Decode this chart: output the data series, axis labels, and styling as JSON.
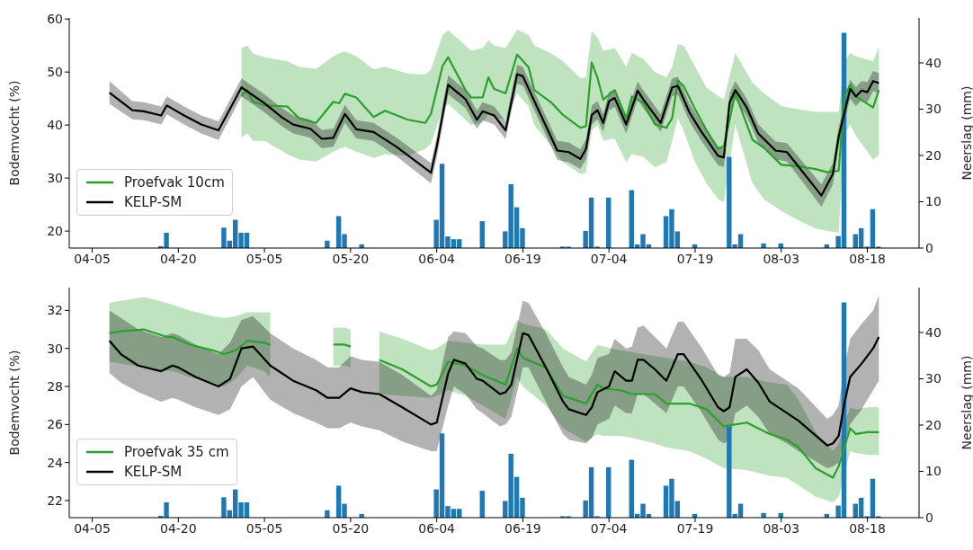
{
  "chart_data": [
    {
      "type": "line",
      "ylabel": "Bodemvocht (%)",
      "y2label": "Neerslag (mm)",
      "legend": "bottom left",
      "xlim": [
        "--04-01",
        "--08-27"
      ],
      "xticks": [
        {
          "value": "--04-05",
          "label": "04-05"
        },
        {
          "value": "--04-20",
          "label": "04-20"
        },
        {
          "value": "--05-05",
          "label": "05-05"
        },
        {
          "value": "--05-20",
          "label": "05-20"
        },
        {
          "value": "--06-04",
          "label": "06-04"
        },
        {
          "value": "--06-19",
          "label": "06-19"
        },
        {
          "value": "--07-04",
          "label": "07-04"
        },
        {
          "value": "--07-19",
          "label": "07-19"
        },
        {
          "value": "--08-03",
          "label": "08-03"
        },
        {
          "value": "--08-18",
          "label": "08-18"
        }
      ],
      "ylim": [
        16.8,
        60.2
      ],
      "yticks": [
        20,
        30,
        40,
        50,
        60
      ],
      "y2lim": [
        0,
        49.7
      ],
      "y2ticks": [
        0,
        10,
        20,
        30,
        40
      ],
      "series": [
        {
          "name": "Proefvak 10cm",
          "color": "#2ca02c",
          "x": [
            "--05-01",
            "--05-02",
            "--05-03",
            "--05-05",
            "--05-09",
            "--05-11",
            "--05-14",
            "--05-17",
            "--05-18",
            "--05-19",
            "--05-21",
            "--05-24",
            "--05-26",
            "--05-30",
            "--06-02",
            "--06-03",
            "--06-05",
            "--06-06",
            "--06-09",
            "--06-10",
            "--06-12",
            "--06-13",
            "--06-14",
            "--06-16",
            "--06-18",
            "--06-20",
            "--06-21",
            "--06-24",
            "--06-26",
            "--06-29",
            "--06-30",
            "--07-01",
            "--07-02",
            "--07-03",
            "--07-05",
            "--07-07",
            "--07-08",
            "--07-10",
            "--07-12",
            "--07-14",
            "--07-15",
            "--07-16",
            "--07-17",
            "--07-19",
            "--07-21",
            "--07-23",
            "--07-24",
            "--07-26",
            "--07-29",
            "--07-31",
            "--08-03",
            "--08-06",
            "--08-09",
            "--08-11",
            "--08-13",
            "--08-14",
            "--08-15",
            "--08-16",
            "--08-19",
            "--08-20"
          ],
          "values": [
            45.5,
            46.6,
            44.4,
            43.7,
            43.5,
            41.3,
            40.4,
            44.4,
            44.1,
            45.9,
            45.2,
            41.5,
            42.7,
            41.0,
            40.4,
            42.1,
            51.1,
            52.8,
            46.6,
            45.2,
            45.2,
            49.0,
            46.8,
            46.0,
            53.3,
            50.9,
            46.6,
            44.2,
            41.9,
            39.5,
            39.8,
            51.8,
            48.9,
            44.8,
            46.6,
            41.3,
            45.4,
            44.2,
            40.1,
            39.5,
            41.3,
            48.4,
            47.4,
            43.0,
            39.0,
            35.5,
            36.0,
            46.0,
            37.2,
            35.7,
            32.5,
            32.2,
            31.7,
            31.1,
            31.4,
            45.4,
            47.6,
            45.4,
            43.3,
            46.6
          ],
          "lower": [
            37.6,
            38.5,
            37.0,
            37.0,
            34.5,
            33.5,
            33.1,
            35.0,
            35.5,
            35.9,
            35.0,
            33.8,
            34.5,
            34.2,
            35.5,
            36.5,
            43.0,
            44.0,
            41.0,
            40.0,
            40.5,
            42.0,
            41.5,
            41.0,
            46.0,
            43.5,
            40.0,
            36.0,
            33.0,
            30.8,
            31.0,
            39.0,
            40.0,
            37.0,
            37.5,
            33.0,
            34.5,
            34.0,
            32.0,
            33.0,
            37.0,
            41.3,
            39.0,
            33.0,
            29.0,
            26.0,
            25.5,
            40.1,
            29.0,
            26.0,
            23.8,
            22.0,
            20.5,
            20.0,
            19.7,
            38.0,
            40.1,
            38.0,
            33.5,
            34.3
          ],
          "upper": [
            54.5,
            55.0,
            53.5,
            52.8,
            52.0,
            51.0,
            50.6,
            53.0,
            53.5,
            53.9,
            53.0,
            50.5,
            51.0,
            49.7,
            49.5,
            50.5,
            57.0,
            57.9,
            55.0,
            54.0,
            54.5,
            56.0,
            55.0,
            54.5,
            58.0,
            57.0,
            55.0,
            53.5,
            52.0,
            48.9,
            49.0,
            57.7,
            56.5,
            54.0,
            54.5,
            51.0,
            53.6,
            52.5,
            50.0,
            49.0,
            51.0,
            55.3,
            55.0,
            51.0,
            47.0,
            45.5,
            44.8,
            53.6,
            48.0,
            46.0,
            43.6,
            43.0,
            42.5,
            42.5,
            42.5,
            52.0,
            53.6,
            53.0,
            52.0,
            54.7
          ]
        },
        {
          "name": "KELP-SM",
          "color": "#000000",
          "x": [
            "--04-08",
            "--04-12",
            "--04-14",
            "--04-17",
            "--04-18",
            "--04-21",
            "--04-24",
            "--04-27",
            "--05-01",
            "--05-05",
            "--05-08",
            "--05-10",
            "--05-13",
            "--05-15",
            "--05-17",
            "--05-19",
            "--05-21",
            "--05-24",
            "--05-28",
            "--06-03",
            "--06-04",
            "--06-06",
            "--06-09",
            "--06-11",
            "--06-12",
            "--06-14",
            "--06-16",
            "--06-18",
            "--06-19",
            "--06-25",
            "--06-27",
            "--06-29",
            "--06-30",
            "--07-01",
            "--07-02",
            "--07-03",
            "--07-04",
            "--07-05",
            "--07-07",
            "--07-09",
            "--07-10",
            "--07-13",
            "--07-15",
            "--07-16",
            "--07-18",
            "--07-20",
            "--07-23",
            "--07-24",
            "--07-25",
            "--07-26",
            "--07-28",
            "--07-30",
            "--08-02",
            "--08-04",
            "--08-10",
            "--08-12",
            "--08-13",
            "--08-15",
            "--08-16",
            "--08-17",
            "--08-18",
            "--08-19",
            "--08-20"
          ],
          "values": [
            46.1,
            42.8,
            42.6,
            41.8,
            43.7,
            41.8,
            40.1,
            39.0,
            47.1,
            44.1,
            41.5,
            40.1,
            39.3,
            37.4,
            37.6,
            42.1,
            39.2,
            38.7,
            35.9,
            31.0,
            35.9,
            47.6,
            44.9,
            41.0,
            42.6,
            41.8,
            39.0,
            49.6,
            49.2,
            35.2,
            34.9,
            33.6,
            35.5,
            41.9,
            42.8,
            40.4,
            44.5,
            45.1,
            40.1,
            46.5,
            44.8,
            40.4,
            47.1,
            47.4,
            42.4,
            38.9,
            34.2,
            33.9,
            44.2,
            46.6,
            43.3,
            38.4,
            35.2,
            34.9,
            26.7,
            30.8,
            37.8,
            46.8,
            45.4,
            46.5,
            46.2,
            48.3,
            47.9
          ],
          "lower": [
            44.0,
            41.1,
            40.9,
            40.1,
            42.0,
            40.1,
            38.4,
            37.2,
            45.4,
            42.4,
            39.8,
            38.4,
            37.6,
            35.6,
            35.9,
            40.4,
            37.5,
            37.0,
            34.1,
            29.0,
            33.8,
            45.8,
            43.2,
            39.3,
            40.9,
            40.1,
            37.3,
            47.8,
            47.5,
            33.4,
            33.0,
            31.7,
            33.6,
            40.1,
            41.1,
            38.7,
            42.8,
            43.4,
            38.4,
            44.8,
            43.1,
            38.7,
            45.4,
            45.7,
            40.7,
            37.2,
            32.4,
            32.1,
            42.5,
            44.9,
            41.6,
            36.7,
            33.5,
            33.1,
            24.6,
            28.8,
            36.0,
            45.0,
            43.6,
            44.7,
            44.3,
            46.4,
            46.0
          ],
          "upper": [
            48.3,
            44.5,
            44.3,
            43.5,
            45.4,
            43.5,
            41.8,
            40.7,
            48.8,
            45.8,
            43.2,
            41.8,
            41.0,
            39.1,
            39.3,
            43.8,
            40.9,
            40.4,
            37.6,
            32.8,
            37.8,
            49.4,
            46.6,
            42.7,
            44.3,
            43.5,
            40.7,
            51.4,
            50.9,
            37.0,
            36.7,
            35.4,
            37.3,
            43.7,
            44.5,
            42.1,
            46.2,
            46.8,
            41.8,
            48.2,
            46.5,
            42.1,
            48.8,
            49.1,
            44.1,
            40.6,
            36.0,
            35.7,
            45.9,
            48.3,
            45.0,
            40.1,
            36.9,
            36.6,
            28.8,
            32.8,
            39.6,
            48.6,
            47.2,
            48.3,
            48.1,
            50.2,
            49.8
          ]
        },
        {
          "type": "bar",
          "axis": "y2",
          "color": "#1f77b4",
          "x": [
            "--04-17",
            "--04-18",
            "--04-28",
            "--04-29",
            "--04-30",
            "--05-01",
            "--05-02",
            "--05-16",
            "--05-18",
            "--05-19",
            "--05-22",
            "--06-04",
            "--06-05",
            "--06-06",
            "--06-07",
            "--06-08",
            "--06-12",
            "--06-16",
            "--06-17",
            "--06-18",
            "--06-19",
            "--06-26",
            "--06-27",
            "--06-30",
            "--07-01",
            "--07-02",
            "--07-04",
            "--07-08",
            "--07-09",
            "--07-10",
            "--07-11",
            "--07-14",
            "--07-15",
            "--07-16",
            "--07-19",
            "--07-25",
            "--07-26",
            "--07-27",
            "--07-31",
            "--08-03",
            "--08-11",
            "--08-13",
            "--08-14",
            "--08-16",
            "--08-17",
            "--08-18",
            "--08-19",
            "--08-20"
          ],
          "values": [
            0.4,
            3.3,
            4.4,
            1.6,
            6.1,
            3.3,
            3.3,
            1.6,
            6.9,
            3.0,
            0.8,
            6.1,
            18.2,
            2.5,
            1.9,
            1.9,
            5.8,
            3.6,
            13.8,
            8.8,
            4.3,
            0.3,
            0.3,
            3.7,
            10.9,
            0.3,
            10.9,
            12.5,
            0.8,
            3.0,
            0.8,
            6.9,
            8.4,
            3.6,
            0.8,
            19.7,
            0.8,
            3.0,
            1.0,
            1.0,
            0.8,
            2.6,
            46.5,
            3.0,
            4.3,
            0.3,
            8.4,
            0.3
          ]
        }
      ]
    },
    {
      "type": "line",
      "ylabel": "Bodemvocht (%)",
      "y2label": "Neerslag (mm)",
      "legend": "bottom left",
      "xlim": [
        "--04-01",
        "--08-27"
      ],
      "xticks": [
        {
          "value": "--04-05",
          "label": "04-05"
        },
        {
          "value": "--04-20",
          "label": "04-20"
        },
        {
          "value": "--05-05",
          "label": "05-05"
        },
        {
          "value": "--05-20",
          "label": "05-20"
        },
        {
          "value": "--06-04",
          "label": "06-04"
        },
        {
          "value": "--06-19",
          "label": "06-19"
        },
        {
          "value": "--07-04",
          "label": "07-04"
        },
        {
          "value": "--07-19",
          "label": "07-19"
        },
        {
          "value": "--08-03",
          "label": "08-03"
        },
        {
          "value": "--08-18",
          "label": "08-18"
        }
      ],
      "ylim": [
        21.1,
        33.2
      ],
      "yticks": [
        22,
        24,
        26,
        28,
        30,
        32
      ],
      "y2lim": [
        0,
        49.7
      ],
      "y2ticks": [
        0,
        10,
        20,
        30,
        40
      ],
      "series": [
        {
          "name": "Proefvak 35 cm",
          "color": "#2ca02c",
          "x": [
            "--04-08",
            "--04-10",
            "--04-14",
            "--04-18",
            "--04-19",
            "--04-22",
            "--04-26",
            "--04-28",
            "--04-30",
            "--05-02",
            "--05-05",
            "--05-06",
            "--05-13",
            "--05-17",
            "--05-18",
            "--05-19",
            "--05-20",
            "--05-22",
            "--05-25",
            "--05-29",
            "--06-03",
            "--06-04",
            "--06-06",
            "--06-09",
            "--06-12",
            "--06-16",
            "--06-18",
            "--06-19",
            "--06-23",
            "--06-26",
            "--06-30",
            "--07-02",
            "--07-03",
            "--07-06",
            "--07-08",
            "--07-12",
            "--07-14",
            "--07-18",
            "--07-21",
            "--07-24",
            "--07-28",
            "--08-01",
            "--08-04",
            "--08-06",
            "--08-09",
            "--08-12",
            "--08-13",
            "--08-15",
            "--08-16",
            "--08-18",
            "--08-20"
          ],
          "values": [
            30.8,
            30.9,
            31.0,
            30.6,
            30.6,
            30.2,
            29.9,
            29.7,
            29.9,
            30.4,
            30.3,
            30.2,
            null,
            30.2,
            30.2,
            30.2,
            30.1,
            null,
            29.4,
            28.9,
            28.0,
            28.1,
            29.3,
            29.1,
            28.6,
            28.1,
            30.0,
            29.5,
            29.0,
            27.5,
            27.1,
            28.1,
            27.9,
            27.8,
            27.6,
            27.6,
            27.1,
            27.1,
            26.8,
            25.9,
            26.1,
            25.5,
            25.2,
            24.8,
            23.7,
            23.2,
            23.8,
            25.8,
            25.5,
            25.6,
            25.6
          ],
          "lower": [
            29.3,
            29.2,
            29.0,
            28.8,
            28.8,
            28.5,
            28.2,
            28.0,
            28.4,
            29.1,
            28.8,
            28.5,
            null,
            29.1,
            29.1,
            29.1,
            29.0,
            null,
            27.6,
            27.5,
            27.4,
            27.5,
            27.8,
            27.5,
            27.0,
            26.3,
            28.5,
            28.0,
            27.0,
            25.8,
            25.1,
            25.5,
            25.4,
            25.4,
            25.3,
            25.0,
            24.8,
            24.6,
            24.2,
            23.7,
            23.6,
            23.3,
            23.2,
            22.8,
            22.2,
            21.9,
            22.2,
            24.6,
            24.5,
            24.4,
            24.4
          ],
          "upper": [
            32.4,
            32.5,
            32.7,
            32.4,
            32.3,
            32.0,
            31.7,
            31.6,
            31.7,
            31.9,
            31.9,
            31.9,
            null,
            31.1,
            31.1,
            31.1,
            31.0,
            null,
            30.9,
            30.5,
            29.9,
            30.0,
            30.4,
            30.3,
            30.2,
            30.2,
            31.5,
            31.3,
            31.0,
            30.0,
            29.3,
            30.2,
            30.1,
            29.9,
            29.8,
            29.6,
            29.5,
            29.3,
            29.0,
            28.5,
            28.5,
            28.2,
            28.1,
            27.3,
            25.6,
            24.6,
            25.0,
            26.9,
            26.8,
            26.9,
            26.9
          ]
        },
        {
          "name": "KELP-SM",
          "color": "#000000",
          "x": [
            "--04-08",
            "--04-10",
            "--04-13",
            "--04-17",
            "--04-19",
            "--04-20",
            "--04-23",
            "--04-27",
            "--04-29",
            "--05-01",
            "--05-03",
            "--05-06",
            "--05-10",
            "--05-14",
            "--05-16",
            "--05-18",
            "--05-20",
            "--05-22",
            "--05-25",
            "--05-29",
            "--06-03",
            "--06-04",
            "--06-06",
            "--06-07",
            "--06-09",
            "--06-11",
            "--06-12",
            "--06-15",
            "--06-16",
            "--06-17",
            "--06-19",
            "--06-20",
            "--06-23",
            "--06-26",
            "--06-27",
            "--06-30",
            "--07-01",
            "--07-02",
            "--07-04",
            "--07-05",
            "--07-07",
            "--07-08",
            "--07-09",
            "--07-10",
            "--07-12",
            "--07-14",
            "--07-16",
            "--07-17",
            "--07-20",
            "--07-23",
            "--07-24",
            "--07-25",
            "--07-26",
            "--07-28",
            "--07-30",
            "--08-01",
            "--08-04",
            "--08-06",
            "--08-11",
            "--08-12",
            "--08-13",
            "--08-14",
            "--08-15",
            "--08-17",
            "--08-19",
            "--08-20"
          ],
          "values": [
            30.4,
            29.7,
            29.1,
            28.8,
            29.1,
            29.0,
            28.5,
            28.0,
            28.4,
            30.0,
            30.1,
            29.1,
            28.3,
            27.8,
            27.4,
            27.4,
            27.9,
            27.7,
            27.6,
            26.9,
            26.0,
            26.1,
            28.7,
            29.4,
            29.2,
            28.4,
            28.3,
            27.6,
            27.7,
            28.1,
            30.8,
            30.7,
            29.0,
            27.2,
            26.8,
            26.5,
            26.9,
            27.7,
            28.0,
            28.8,
            28.3,
            28.3,
            29.4,
            29.4,
            28.9,
            28.3,
            29.7,
            29.7,
            28.4,
            26.9,
            26.7,
            26.9,
            28.5,
            28.9,
            28.2,
            27.2,
            26.6,
            26.2,
            24.9,
            25.0,
            25.4,
            27.1,
            28.5,
            29.2,
            30.0,
            30.6
          ],
          "lower": [
            28.7,
            28.2,
            27.7,
            27.2,
            27.4,
            27.3,
            26.9,
            26.5,
            26.8,
            28.0,
            28.5,
            27.3,
            26.6,
            26.1,
            25.8,
            25.8,
            26.1,
            25.9,
            25.7,
            25.1,
            24.6,
            24.6,
            27.0,
            28.0,
            27.6,
            26.8,
            26.6,
            25.9,
            26.0,
            26.4,
            29.0,
            29.0,
            27.2,
            25.5,
            25.2,
            25.0,
            25.3,
            26.0,
            26.3,
            27.0,
            26.6,
            26.6,
            27.6,
            27.6,
            27.1,
            26.6,
            28.0,
            28.0,
            26.7,
            25.2,
            25.0,
            25.2,
            26.6,
            27.0,
            26.4,
            25.5,
            25.0,
            24.6,
            23.7,
            23.8,
            24.0,
            25.0,
            26.0,
            26.8,
            27.8,
            28.3
          ],
          "upper": [
            32.0,
            31.6,
            31.0,
            30.6,
            30.8,
            30.7,
            30.2,
            29.7,
            30.3,
            31.5,
            31.7,
            30.8,
            30.0,
            29.4,
            29.0,
            29.0,
            29.6,
            29.4,
            29.3,
            28.6,
            27.5,
            27.8,
            30.6,
            30.9,
            30.8,
            30.1,
            30.0,
            29.4,
            29.4,
            29.8,
            32.5,
            32.4,
            30.8,
            29.0,
            28.5,
            28.1,
            28.6,
            29.5,
            29.7,
            30.5,
            30.0,
            30.1,
            31.1,
            31.2,
            30.6,
            30.0,
            31.4,
            31.4,
            30.1,
            28.6,
            28.5,
            28.7,
            30.5,
            30.5,
            29.9,
            28.9,
            28.3,
            27.9,
            26.3,
            26.5,
            27.0,
            29.0,
            30.5,
            31.3,
            32.0,
            32.8
          ]
        },
        {
          "type": "bar",
          "axis": "y2",
          "color": "#1f77b4",
          "x": [
            "--04-17",
            "--04-18",
            "--04-28",
            "--04-29",
            "--04-30",
            "--05-01",
            "--05-02",
            "--05-16",
            "--05-18",
            "--05-19",
            "--05-22",
            "--06-04",
            "--06-05",
            "--06-06",
            "--06-07",
            "--06-08",
            "--06-12",
            "--06-16",
            "--06-17",
            "--06-18",
            "--06-19",
            "--06-26",
            "--06-27",
            "--06-30",
            "--07-01",
            "--07-02",
            "--07-04",
            "--07-08",
            "--07-09",
            "--07-10",
            "--07-11",
            "--07-14",
            "--07-15",
            "--07-16",
            "--07-19",
            "--07-25",
            "--07-26",
            "--07-27",
            "--07-31",
            "--08-03",
            "--08-11",
            "--08-13",
            "--08-14",
            "--08-16",
            "--08-17",
            "--08-18",
            "--08-19",
            "--08-20"
          ],
          "values": [
            0.4,
            3.3,
            4.4,
            1.6,
            6.1,
            3.3,
            3.3,
            1.6,
            6.9,
            3.0,
            0.8,
            6.1,
            18.2,
            2.5,
            1.9,
            1.9,
            5.8,
            3.6,
            13.8,
            8.8,
            4.3,
            0.3,
            0.3,
            3.7,
            10.9,
            0.3,
            10.9,
            12.5,
            0.8,
            3.0,
            0.8,
            6.9,
            8.4,
            3.6,
            0.8,
            19.7,
            0.8,
            3.0,
            1.0,
            1.0,
            0.8,
            2.6,
            46.5,
            3.0,
            4.3,
            0.3,
            8.4,
            0.3
          ]
        }
      ]
    }
  ]
}
